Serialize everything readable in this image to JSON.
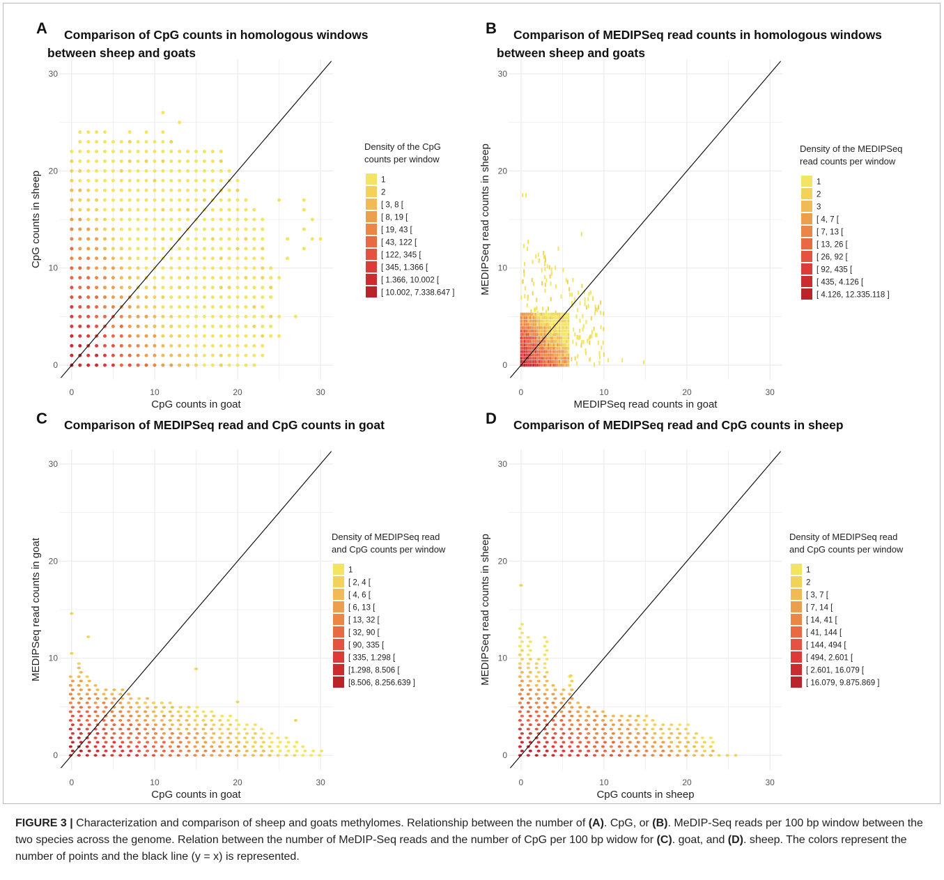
{
  "caption": {
    "label": "FIGURE 3 |",
    "text_1": " Characterization and comparison of sheep and goats methylomes. Relationship between the number of ",
    "ref_a": "(A)",
    "text_2": ". CpG, or ",
    "ref_b": "(B)",
    "text_3": ". MeDIP-Seq reads per 100 bp window between the two species across the genome. Relation between the number of MeDIP-Seq reads and the number of CpG per 100 bp widow for ",
    "ref_c": "(C)",
    "text_4": ". goat, and ",
    "ref_d": "(D)",
    "text_5": ". sheep. The colors represent the number of points and the black line (y = x) is represented."
  },
  "colors": {
    "ramp": [
      "#f3e563",
      "#f1d25b",
      "#f0bb54",
      "#ee9f4c",
      "#ec8646",
      "#e96a42",
      "#e45340",
      "#db3c3a",
      "#cb2c30",
      "#b8242a"
    ],
    "identity_line": "#111111",
    "grid": "#ebebeb"
  },
  "chart_data": [
    {
      "panel": "A",
      "type": "scatter",
      "title": "Comparison of CpG counts in homologous windows between sheep and goats",
      "title_lines": [
        "Comparison of CpG counts in homologous windows",
        "between sheep and goats"
      ],
      "xlabel": "CpG counts in goat",
      "ylabel": "CpG counts in sheep",
      "xlim": [
        -1.5,
        31.5
      ],
      "ylim": [
        -1.5,
        31.5
      ],
      "xticks": [
        0,
        10,
        20,
        30
      ],
      "yticks": [
        0,
        10,
        20,
        30
      ],
      "grid": true,
      "identity_line": "y = x",
      "legend": {
        "position": "right",
        "title_lines": [
          "Density of the CpG",
          "counts per window"
        ],
        "items": [
          "1",
          "2",
          "[ 3, 8 [",
          "[ 8, 19 [",
          "[ 19, 43 [",
          "[ 43, 122 [",
          "[ 122, 345 [",
          "[ 345, 1.366 [",
          "[ 1.366, 10.002 [",
          "[ 10.002, 7.338.647 ]"
        ]
      },
      "rows": [
        {
          "y": 0,
          "x": [
            0,
            22
          ]
        },
        {
          "y": 1,
          "x": [
            0,
            23
          ]
        },
        {
          "y": 2,
          "x": [
            0,
            23
          ]
        },
        {
          "y": 3,
          "x": [
            0,
            25
          ]
        },
        {
          "y": 4,
          "x": [
            0,
            24
          ]
        },
        {
          "y": 5,
          "x": [
            0,
            25
          ]
        },
        {
          "y": 6,
          "x": [
            0,
            23
          ]
        },
        {
          "y": 7,
          "x": [
            0,
            24
          ]
        },
        {
          "y": 8,
          "x": [
            0,
            24
          ]
        },
        {
          "y": 9,
          "x": [
            0,
            25
          ]
        },
        {
          "y": 10,
          "x": [
            0,
            24
          ]
        },
        {
          "y": 11,
          "x": [
            0,
            23
          ]
        },
        {
          "y": 12,
          "x": [
            0,
            23
          ]
        },
        {
          "y": 13,
          "x": [
            0,
            23
          ]
        },
        {
          "y": 14,
          "x": [
            0,
            23
          ]
        },
        {
          "y": 15,
          "x": [
            0,
            23
          ]
        },
        {
          "y": 16,
          "x": [
            0,
            22
          ]
        },
        {
          "y": 17,
          "x": [
            0,
            21
          ]
        },
        {
          "y": 18,
          "x": [
            0,
            20
          ]
        },
        {
          "y": 19,
          "x": [
            0,
            20
          ]
        },
        {
          "y": 20,
          "x": [
            0,
            19
          ]
        },
        {
          "y": 21,
          "x": [
            0,
            18
          ]
        },
        {
          "y": 22,
          "x": [
            0,
            18
          ]
        },
        {
          "y": 23,
          "x": [
            1,
            12
          ]
        },
        {
          "y": 24,
          "x": [
            1,
            4
          ]
        }
      ],
      "extra_points": [
        [
          7,
          24
        ],
        [
          9,
          24
        ],
        [
          11,
          24
        ],
        [
          11,
          26
        ],
        [
          13,
          25
        ],
        [
          27,
          5
        ],
        [
          28,
          12
        ],
        [
          28,
          14
        ],
        [
          28,
          16
        ],
        [
          28,
          17
        ],
        [
          29,
          15
        ],
        [
          29,
          13
        ],
        [
          30,
          13
        ],
        [
          26,
          11
        ],
        [
          26,
          13
        ],
        [
          25,
          17
        ]
      ]
    },
    {
      "panel": "B",
      "type": "heatmap",
      "title": "Comparison of MEDIPSeq read counts in homologous windows between sheep and goats",
      "title_lines": [
        "Comparison of MEDIPSeq read counts in homologous windows",
        "between sheep and goats"
      ],
      "xlabel": "MEDIPSeq read counts in goat",
      "ylabel": "MEDIPSeq read counts in sheep",
      "xlim": [
        -1.5,
        31.5
      ],
      "ylim": [
        -1.5,
        31.5
      ],
      "xticks": [
        0,
        10,
        20,
        30
      ],
      "yticks": [
        0,
        10,
        20,
        30
      ],
      "grid": true,
      "identity_line": "y = x",
      "legend": {
        "position": "right",
        "title_lines": [
          "Density of the MEDIPSeq",
          "read counts per window"
        ],
        "items": [
          "1",
          "2",
          "3",
          "[ 4, 7 [",
          "[ 7, 13 [",
          "[ 13, 26 [",
          "[ 26, 92 [",
          "[ 92, 435 [",
          "[ 435, 4.126 [",
          "[ 4.126, 12.335.118 ]"
        ]
      },
      "dense_block": {
        "x": [
          0,
          5.8
        ],
        "y": [
          0,
          5.3
        ]
      },
      "sparse_extent": {
        "x": [
          0,
          10
        ],
        "y": [
          0,
          13.5
        ]
      },
      "extra_points": [
        [
          0.2,
          17.5
        ],
        [
          0.6,
          17.5
        ],
        [
          14.8,
          0.3
        ],
        [
          12.2,
          0.5
        ],
        [
          10.5,
          0.5
        ],
        [
          1.8,
          11.2
        ],
        [
          4.5,
          12.0
        ],
        [
          7.3,
          13.5
        ]
      ]
    },
    {
      "panel": "C",
      "type": "heatmap",
      "title": "Comparison of MEDIPSeq read and CpG counts in goat",
      "title_lines": [
        "Comparison of MEDIPSeq read and CpG counts in goat"
      ],
      "xlabel": "CpG counts in goat",
      "ylabel": "MEDIPSeq read counts in goat",
      "xlim": [
        -1.5,
        31.5
      ],
      "ylim": [
        -1.5,
        31.5
      ],
      "xticks": [
        0,
        10,
        20,
        30
      ],
      "yticks": [
        0,
        10,
        20,
        30
      ],
      "grid": true,
      "identity_line": "y = x",
      "legend": {
        "position": "right",
        "title_lines": [
          "Density of MEDIPSeq read",
          "and CpG counts per window"
        ],
        "items": [
          "1",
          "[ 2, 4 [",
          "[ 4, 6 [",
          "[ 6, 13 [",
          "[ 13, 32 [",
          "[ 32, 90 [",
          "[ 90, 335 [",
          "[ 335, 1.298 [",
          "[1.298, 8.506 [",
          "[8.506, 8.256.639 ]"
        ]
      },
      "columns": [
        {
          "x": 0,
          "top": 8.5
        },
        {
          "x": 1,
          "top": 9.8
        },
        {
          "x": 2,
          "top": 8.3
        },
        {
          "x": 3,
          "top": 7.3
        },
        {
          "x": 4,
          "top": 7.2
        },
        {
          "x": 5,
          "top": 7.2
        },
        {
          "x": 6,
          "top": 6.8
        },
        {
          "x": 7,
          "top": 6.4
        },
        {
          "x": 8,
          "top": 6.2
        },
        {
          "x": 9,
          "top": 6.0
        },
        {
          "x": 10,
          "top": 5.8
        },
        {
          "x": 11,
          "top": 5.6
        },
        {
          "x": 12,
          "top": 5.6
        },
        {
          "x": 13,
          "top": 5.4
        },
        {
          "x": 14,
          "top": 5.4
        },
        {
          "x": 15,
          "top": 5.0
        },
        {
          "x": 16,
          "top": 4.8
        },
        {
          "x": 17,
          "top": 4.6
        },
        {
          "x": 18,
          "top": 4.4
        },
        {
          "x": 19,
          "top": 4.2
        },
        {
          "x": 20,
          "top": 3.8
        },
        {
          "x": 21,
          "top": 3.6
        },
        {
          "x": 22,
          "top": 3.2
        },
        {
          "x": 23,
          "top": 2.8
        },
        {
          "x": 24,
          "top": 2.4
        },
        {
          "x": 25,
          "top": 2.2
        },
        {
          "x": 26,
          "top": 1.8
        },
        {
          "x": 27,
          "top": 1.4
        },
        {
          "x": 28,
          "top": 1.0
        },
        {
          "x": 29,
          "top": 0.8
        },
        {
          "x": 30,
          "top": 0.6
        }
      ],
      "extra_points": [
        [
          0,
          14.6
        ],
        [
          0,
          10.5
        ],
        [
          2,
          12.2
        ],
        [
          15,
          8.9
        ],
        [
          20,
          5.5
        ],
        [
          27,
          3.6
        ]
      ]
    },
    {
      "panel": "D",
      "type": "heatmap",
      "title": "Comparison of MEDIPSeq read and CpG counts in sheep",
      "title_lines": [
        "Comparison of MEDIPSeq read and CpG counts in sheep"
      ],
      "xlabel": "CpG counts in sheep",
      "ylabel": "MEDIPSeq read counts in sheep",
      "xlim": [
        -1.5,
        31.5
      ],
      "ylim": [
        -1.5,
        31.5
      ],
      "xticks": [
        0,
        10,
        20,
        30
      ],
      "yticks": [
        0,
        10,
        20,
        30
      ],
      "grid": true,
      "identity_line": "y = x",
      "legend": {
        "position": "right",
        "title_lines": [
          "Density of MEDIPSeq read",
          "and CpG counts per window"
        ],
        "items": [
          "1",
          "2",
          "[ 3, 7 [",
          "[ 7, 14 [",
          "[ 14, 41 [",
          "[ 41, 144 [",
          "[ 144, 494 [",
          "[ 494, 2.601 [",
          "[ 2.601, 16.079 [",
          "[ 16.079, 9.875.869 ]"
        ]
      },
      "columns": [
        {
          "x": 0,
          "top": 13.5
        },
        {
          "x": 1,
          "top": 12.3
        },
        {
          "x": 2,
          "top": 10.0
        },
        {
          "x": 3,
          "top": 12.3
        },
        {
          "x": 4,
          "top": 7.3
        },
        {
          "x": 5,
          "top": 6.8
        },
        {
          "x": 6,
          "top": 8.2
        },
        {
          "x": 7,
          "top": 5.8
        },
        {
          "x": 8,
          "top": 5.3
        },
        {
          "x": 9,
          "top": 4.9
        },
        {
          "x": 10,
          "top": 4.9
        },
        {
          "x": 11,
          "top": 4.5
        },
        {
          "x": 12,
          "top": 4.2
        },
        {
          "x": 13,
          "top": 4.2
        },
        {
          "x": 14,
          "top": 4.2
        },
        {
          "x": 15,
          "top": 4.5
        },
        {
          "x": 16,
          "top": 3.8
        },
        {
          "x": 17,
          "top": 3.4
        },
        {
          "x": 18,
          "top": 3.2
        },
        {
          "x": 19,
          "top": 3.2
        },
        {
          "x": 20,
          "top": 3.2
        },
        {
          "x": 21,
          "top": 2.6
        },
        {
          "x": 22,
          "top": 1.8
        },
        {
          "x": 23,
          "top": 2.0
        },
        {
          "x": 24,
          "top": 0.4
        },
        {
          "x": 25,
          "top": 0.3
        },
        {
          "x": 26,
          "top": 0.2
        }
      ],
      "extra_points": [
        [
          0,
          17.5
        ],
        [
          6,
          8.2
        ]
      ]
    }
  ]
}
